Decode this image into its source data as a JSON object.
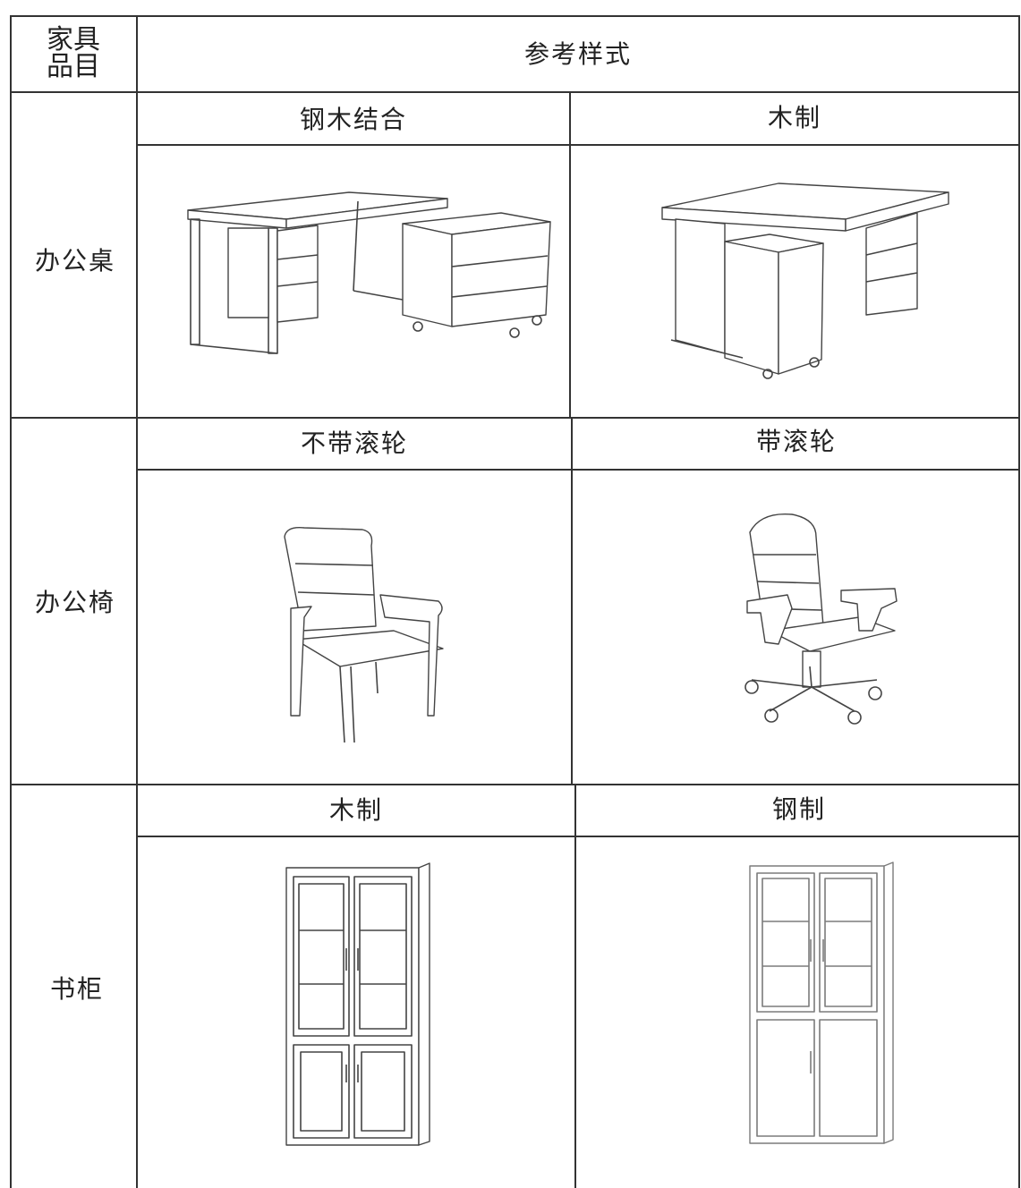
{
  "header": {
    "item": [
      "家具",
      "品目"
    ],
    "style": "参考样式"
  },
  "rows": [
    {
      "item": "办公桌",
      "styles": [
        "钢木结合",
        "木制"
      ]
    },
    {
      "item": "办公椅",
      "styles": [
        "不带滚轮",
        "带滚轮"
      ]
    },
    {
      "item": "书柜",
      "styles": [
        "木制",
        "钢制"
      ]
    }
  ]
}
